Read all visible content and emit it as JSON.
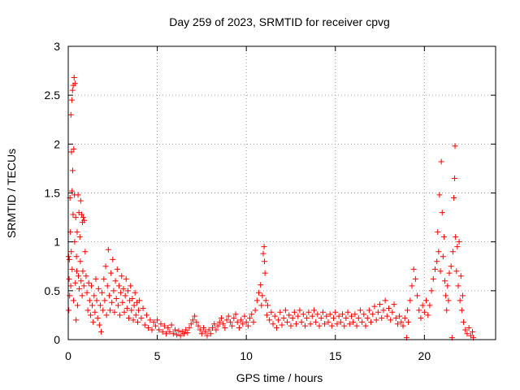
{
  "chart_data": {
    "type": "scatter",
    "title": "Day 259 of 2023, SRMTID for receiver cpvg",
    "xlabel": "GPS time / hours",
    "ylabel": "SRMTID / TECUs",
    "xlim": [
      0,
      24
    ],
    "ylim": [
      0,
      3
    ],
    "xticks": [
      0,
      5,
      10,
      15,
      20
    ],
    "yticks": [
      0,
      0.5,
      1,
      1.5,
      2,
      2.5,
      3
    ],
    "xtick_labels": [
      "0",
      "5",
      "10",
      "15",
      "20"
    ],
    "ytick_labels": [
      "0",
      "0.5",
      "1",
      "1.5",
      "2",
      "2.5",
      "3"
    ],
    "grid": true,
    "marker": "+",
    "color": "#ff0000",
    "series": [
      {
        "name": "SRMTID",
        "points": [
          [
            0.02,
            0.85
          ],
          [
            0.03,
            0.3
          ],
          [
            0.05,
            0.62
          ],
          [
            0.06,
            0.82
          ],
          [
            0.08,
            0.45
          ],
          [
            0.1,
            1.45
          ],
          [
            0.12,
            1.1
          ],
          [
            0.14,
            0.55
          ],
          [
            0.15,
            2.3
          ],
          [
            0.17,
            0.9
          ],
          [
            0.18,
            1.92
          ],
          [
            0.2,
            2.45
          ],
          [
            0.21,
            1.52
          ],
          [
            0.22,
            0.72
          ],
          [
            0.24,
            2.55
          ],
          [
            0.25,
            1.73
          ],
          [
            0.27,
            1.28
          ],
          [
            0.28,
            2.6
          ],
          [
            0.3,
            0.4
          ],
          [
            0.31,
            1.95
          ],
          [
            0.33,
            2.68
          ],
          [
            0.35,
            1.48
          ],
          [
            0.36,
            1.0
          ],
          [
            0.38,
            2.62
          ],
          [
            0.4,
            0.58
          ],
          [
            0.42,
            1.25
          ],
          [
            0.44,
            0.2
          ],
          [
            0.46,
            0.85
          ],
          [
            0.48,
            0.7
          ],
          [
            0.5,
            1.1
          ],
          [
            0.52,
            0.35
          ],
          [
            0.55,
            1.48
          ],
          [
            0.57,
            0.65
          ],
          [
            0.6,
            1.3
          ],
          [
            0.62,
            0.52
          ],
          [
            0.65,
            1.05
          ],
          [
            0.68,
            0.8
          ],
          [
            0.7,
            1.42
          ],
          [
            0.72,
            0.6
          ],
          [
            0.75,
            1.28
          ],
          [
            0.78,
            0.45
          ],
          [
            0.8,
            1.2
          ],
          [
            0.82,
            0.7
          ],
          [
            0.85,
            1.25
          ],
          [
            0.88,
            0.55
          ],
          [
            0.9,
            1.22
          ],
          [
            0.95,
            0.9
          ],
          [
            1.0,
            0.65
          ],
          [
            1.05,
            0.48
          ],
          [
            1.1,
            0.3
          ],
          [
            1.15,
            0.58
          ],
          [
            1.2,
            0.4
          ],
          [
            1.25,
            0.25
          ],
          [
            1.3,
            0.55
          ],
          [
            1.35,
            0.35
          ],
          [
            1.4,
            0.18
          ],
          [
            1.45,
            0.45
          ],
          [
            1.5,
            0.28
          ],
          [
            1.55,
            0.62
          ],
          [
            1.6,
            0.4
          ],
          [
            1.65,
            0.22
          ],
          [
            1.7,
            0.52
          ],
          [
            1.75,
            0.15
          ],
          [
            1.8,
            0.35
          ],
          [
            1.85,
            0.08
          ],
          [
            1.9,
            0.48
          ],
          [
            1.95,
            0.3
          ],
          [
            2.0,
            0.62
          ],
          [
            2.05,
            0.4
          ],
          [
            2.1,
            0.75
          ],
          [
            2.15,
            0.25
          ],
          [
            2.2,
            0.55
          ],
          [
            2.25,
            0.92
          ],
          [
            2.3,
            0.45
          ],
          [
            2.35,
            0.3
          ],
          [
            2.4,
            0.68
          ],
          [
            2.45,
            0.38
          ],
          [
            2.5,
            0.82
          ],
          [
            2.55,
            0.5
          ],
          [
            2.6,
            0.28
          ],
          [
            2.65,
            0.6
          ],
          [
            2.7,
            0.42
          ],
          [
            2.75,
            0.72
          ],
          [
            2.8,
            0.35
          ],
          [
            2.85,
            0.55
          ],
          [
            2.9,
            0.25
          ],
          [
            2.95,
            0.48
          ],
          [
            3.0,
            0.65
          ],
          [
            3.05,
            0.38
          ],
          [
            3.1,
            0.52
          ],
          [
            3.15,
            0.28
          ],
          [
            3.2,
            0.45
          ],
          [
            3.25,
            0.62
          ],
          [
            3.3,
            0.32
          ],
          [
            3.35,
            0.5
          ],
          [
            3.4,
            0.22
          ],
          [
            3.45,
            0.4
          ],
          [
            3.5,
            0.55
          ],
          [
            3.55,
            0.3
          ],
          [
            3.6,
            0.42
          ],
          [
            3.65,
            0.2
          ],
          [
            3.7,
            0.35
          ],
          [
            3.75,
            0.48
          ],
          [
            3.8,
            0.25
          ],
          [
            3.85,
            0.38
          ],
          [
            3.9,
            0.18
          ],
          [
            3.95,
            0.3
          ],
          [
            4.0,
            0.4
          ],
          [
            4.1,
            0.22
          ],
          [
            4.2,
            0.32
          ],
          [
            4.3,
            0.15
          ],
          [
            4.4,
            0.25
          ],
          [
            4.5,
            0.12
          ],
          [
            4.6,
            0.2
          ],
          [
            4.7,
            0.1
          ],
          [
            4.8,
            0.18
          ],
          [
            4.9,
            0.14
          ],
          [
            5.0,
            0.2
          ],
          [
            5.1,
            0.1
          ],
          [
            5.2,
            0.16
          ],
          [
            5.3,
            0.08
          ],
          [
            5.4,
            0.14
          ],
          [
            5.5,
            0.06
          ],
          [
            5.6,
            0.12
          ],
          [
            5.7,
            0.08
          ],
          [
            5.8,
            0.15
          ],
          [
            5.9,
            0.06
          ],
          [
            6.0,
            0.1
          ],
          [
            6.1,
            0.05
          ],
          [
            6.2,
            0.09
          ],
          [
            6.3,
            0.04
          ],
          [
            6.4,
            0.08
          ],
          [
            6.5,
            0.06
          ],
          [
            6.6,
            0.1
          ],
          [
            6.7,
            0.07
          ],
          [
            6.8,
            0.12
          ],
          [
            6.9,
            0.16
          ],
          [
            7.0,
            0.2
          ],
          [
            7.1,
            0.24
          ],
          [
            7.2,
            0.18
          ],
          [
            7.3,
            0.14
          ],
          [
            7.4,
            0.1
          ],
          [
            7.5,
            0.06
          ],
          [
            7.6,
            0.12
          ],
          [
            7.7,
            0.08
          ],
          [
            7.8,
            0.04
          ],
          [
            7.9,
            0.1
          ],
          [
            8.0,
            0.06
          ],
          [
            8.1,
            0.12
          ],
          [
            8.2,
            0.16
          ],
          [
            8.3,
            0.1
          ],
          [
            8.4,
            0.14
          ],
          [
            8.5,
            0.18
          ],
          [
            8.6,
            0.22
          ],
          [
            8.7,
            0.16
          ],
          [
            8.8,
            0.12
          ],
          [
            8.9,
            0.2
          ],
          [
            9.0,
            0.24
          ],
          [
            9.1,
            0.18
          ],
          [
            9.2,
            0.14
          ],
          [
            9.3,
            0.22
          ],
          [
            9.4,
            0.26
          ],
          [
            9.5,
            0.18
          ],
          [
            9.6,
            0.12
          ],
          [
            9.7,
            0.2
          ],
          [
            9.8,
            0.16
          ],
          [
            9.9,
            0.24
          ],
          [
            10.0,
            0.18
          ],
          [
            10.1,
            0.14
          ],
          [
            10.2,
            0.22
          ],
          [
            10.3,
            0.26
          ],
          [
            10.4,
            0.18
          ],
          [
            10.5,
            0.3
          ],
          [
            10.6,
            0.4
          ],
          [
            10.7,
            0.48
          ],
          [
            10.8,
            0.56
          ],
          [
            10.85,
            0.35
          ],
          [
            10.9,
            0.45
          ],
          [
            10.95,
            0.88
          ],
          [
            11.0,
            0.95
          ],
          [
            11.02,
            0.8
          ],
          [
            11.05,
            0.68
          ],
          [
            11.1,
            0.4
          ],
          [
            11.15,
            0.25
          ],
          [
            11.2,
            0.35
          ],
          [
            11.3,
            0.2
          ],
          [
            11.4,
            0.28
          ],
          [
            11.5,
            0.16
          ],
          [
            11.6,
            0.24
          ],
          [
            11.7,
            0.12
          ],
          [
            11.8,
            0.2
          ],
          [
            11.9,
            0.28
          ],
          [
            12.0,
            0.15
          ],
          [
            12.1,
            0.22
          ],
          [
            12.2,
            0.3
          ],
          [
            12.3,
            0.18
          ],
          [
            12.4,
            0.25
          ],
          [
            12.5,
            0.14
          ],
          [
            12.6,
            0.22
          ],
          [
            12.7,
            0.28
          ],
          [
            12.8,
            0.16
          ],
          [
            12.9,
            0.24
          ],
          [
            13.0,
            0.3
          ],
          [
            13.1,
            0.18
          ],
          [
            13.2,
            0.26
          ],
          [
            13.3,
            0.14
          ],
          [
            13.4,
            0.22
          ],
          [
            13.5,
            0.28
          ],
          [
            13.6,
            0.16
          ],
          [
            13.7,
            0.24
          ],
          [
            13.8,
            0.3
          ],
          [
            13.9,
            0.18
          ],
          [
            14.0,
            0.26
          ],
          [
            14.1,
            0.14
          ],
          [
            14.2,
            0.22
          ],
          [
            14.3,
            0.28
          ],
          [
            14.4,
            0.16
          ],
          [
            14.5,
            0.24
          ],
          [
            14.6,
            0.18
          ],
          [
            14.7,
            0.26
          ],
          [
            14.8,
            0.14
          ],
          [
            14.9,
            0.22
          ],
          [
            15.0,
            0.28
          ],
          [
            15.1,
            0.16
          ],
          [
            15.2,
            0.24
          ],
          [
            15.3,
            0.18
          ],
          [
            15.4,
            0.26
          ],
          [
            15.5,
            0.14
          ],
          [
            15.6,
            0.22
          ],
          [
            15.7,
            0.28
          ],
          [
            15.8,
            0.16
          ],
          [
            15.9,
            0.24
          ],
          [
            16.0,
            0.18
          ],
          [
            16.1,
            0.26
          ],
          [
            16.2,
            0.14
          ],
          [
            16.3,
            0.22
          ],
          [
            16.4,
            0.3
          ],
          [
            16.5,
            0.18
          ],
          [
            16.6,
            0.26
          ],
          [
            16.7,
            0.14
          ],
          [
            16.8,
            0.22
          ],
          [
            16.9,
            0.3
          ],
          [
            17.0,
            0.18
          ],
          [
            17.1,
            0.26
          ],
          [
            17.2,
            0.34
          ],
          [
            17.3,
            0.2
          ],
          [
            17.4,
            0.28
          ],
          [
            17.5,
            0.36
          ],
          [
            17.6,
            0.22
          ],
          [
            17.7,
            0.3
          ],
          [
            17.8,
            0.4
          ],
          [
            17.9,
            0.24
          ],
          [
            18.0,
            0.32
          ],
          [
            18.1,
            0.2
          ],
          [
            18.2,
            0.28
          ],
          [
            18.3,
            0.36
          ],
          [
            18.4,
            0.22
          ],
          [
            18.5,
            0.16
          ],
          [
            18.6,
            0.24
          ],
          [
            18.7,
            0.18
          ],
          [
            18.8,
            0.14
          ],
          [
            18.9,
            0.22
          ],
          [
            19.0,
            0.02
          ],
          [
            19.05,
            0.3
          ],
          [
            19.1,
            0.18
          ],
          [
            19.2,
            0.4
          ],
          [
            19.3,
            0.55
          ],
          [
            19.4,
            0.72
          ],
          [
            19.5,
            0.62
          ],
          [
            19.6,
            0.45
          ],
          [
            19.7,
            0.3
          ],
          [
            19.8,
            0.22
          ],
          [
            19.9,
            0.35
          ],
          [
            20.0,
            0.28
          ],
          [
            20.1,
            0.4
          ],
          [
            20.2,
            0.25
          ],
          [
            20.3,
            0.35
          ],
          [
            20.4,
            0.5
          ],
          [
            20.5,
            0.62
          ],
          [
            20.6,
            0.72
          ],
          [
            20.7,
            0.8
          ],
          [
            20.75,
            1.1
          ],
          [
            20.8,
            0.9
          ],
          [
            20.85,
            1.48
          ],
          [
            20.9,
            0.7
          ],
          [
            20.95,
            1.82
          ],
          [
            21.0,
            1.3
          ],
          [
            21.05,
            0.85
          ],
          [
            21.1,
            1.05
          ],
          [
            21.15,
            0.6
          ],
          [
            21.2,
            0.45
          ],
          [
            21.25,
            0.3
          ],
          [
            21.3,
            0.55
          ],
          [
            21.35,
            0.4
          ],
          [
            21.4,
            0.68
          ],
          [
            21.5,
            0.75
          ],
          [
            21.55,
            0.02
          ],
          [
            21.6,
            0.9
          ],
          [
            21.65,
            1.45
          ],
          [
            21.7,
            1.65
          ],
          [
            21.72,
            1.98
          ],
          [
            21.75,
            1.05
          ],
          [
            21.8,
            0.7
          ],
          [
            21.85,
            0.95
          ],
          [
            21.9,
            0.55
          ],
          [
            21.95,
            1.0
          ],
          [
            22.0,
            0.4
          ],
          [
            22.05,
            0.65
          ],
          [
            22.1,
            0.3
          ],
          [
            22.15,
            0.45
          ],
          [
            22.2,
            0.18
          ],
          [
            22.3,
            0.1
          ],
          [
            22.4,
            0.06
          ],
          [
            22.5,
            0.12
          ],
          [
            22.6,
            0.04
          ],
          [
            22.7,
            0.08
          ],
          [
            22.75,
            0.02
          ]
        ]
      }
    ]
  }
}
